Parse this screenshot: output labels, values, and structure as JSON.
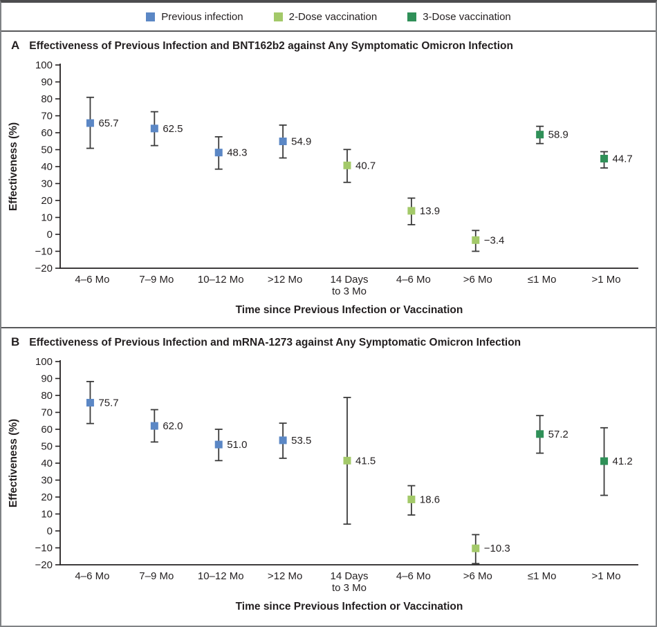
{
  "legend": [
    {
      "label": "Previous infection",
      "color": "#5b87c5"
    },
    {
      "label": "2-Dose vaccination",
      "color": "#a3c969"
    },
    {
      "label": "3-Dose vaccination",
      "color": "#2f9058"
    }
  ],
  "axis_style": {
    "line_color": "#231f20",
    "errorbar_color": "#3b3b3b"
  },
  "chart_data": [
    {
      "type": "scatter",
      "panel_label": "A",
      "title": "Effectiveness of Previous Infection and BNT162b2 against Any Symptomatic Omicron Infection",
      "xlabel": "Time since Previous Infection or Vaccination",
      "ylabel": "Effectiveness (%)",
      "ylim": [
        -20,
        100
      ],
      "y_ticks": [
        100,
        90,
        80,
        70,
        60,
        50,
        40,
        30,
        20,
        10,
        0,
        -10,
        -20
      ],
      "grid": false,
      "legend_position": "top-center",
      "categories": [
        "4–6 Mo",
        "7–9 Mo",
        "10–12 Mo",
        ">12 Mo",
        "14 Days\nto 3 Mo",
        "4–6 Mo",
        ">6 Mo",
        "≤1 Mo",
        ">1 Mo"
      ],
      "points": [
        {
          "category": "4–6 Mo",
          "series": "Previous infection",
          "value": 65.7,
          "label": "65.7",
          "ci_low": 50.8,
          "ci_high": 80.9
        },
        {
          "category": "7–9 Mo",
          "series": "Previous infection",
          "value": 62.5,
          "label": "62.5",
          "ci_low": 52.4,
          "ci_high": 72.4
        },
        {
          "category": "10–12 Mo",
          "series": "Previous infection",
          "value": 48.3,
          "label": "48.3",
          "ci_low": 38.5,
          "ci_high": 57.6
        },
        {
          "category": ">12 Mo",
          "series": "Previous infection",
          "value": 54.9,
          "label": "54.9",
          "ci_low": 45.1,
          "ci_high": 64.5
        },
        {
          "category": "14 Days\nto 3 Mo",
          "series": "2-Dose vaccination",
          "value": 40.7,
          "label": "40.7",
          "ci_low": 30.7,
          "ci_high": 50.1
        },
        {
          "category": "4–6 Mo",
          "series": "2-Dose vaccination",
          "value": 13.9,
          "label": "13.9",
          "ci_low": 5.7,
          "ci_high": 21.4
        },
        {
          "category": ">6 Mo",
          "series": "2-Dose vaccination",
          "value": -3.4,
          "label": "−3.4",
          "ci_low": -10.0,
          "ci_high": 2.3
        },
        {
          "category": "≤1 Mo",
          "series": "3-Dose vaccination",
          "value": 58.9,
          "label": "58.9",
          "ci_low": 53.6,
          "ci_high": 63.8
        },
        {
          "category": ">1 Mo",
          "series": "3-Dose vaccination",
          "value": 44.7,
          "label": "44.7",
          "ci_low": 39.2,
          "ci_high": 48.8
        }
      ]
    },
    {
      "type": "scatter",
      "panel_label": "B",
      "title": "Effectiveness of Previous Infection and mRNA-1273 against Any Symptomatic Omicron Infection",
      "xlabel": "Time since Previous Infection or Vaccination",
      "ylabel": "Effectiveness (%)",
      "ylim": [
        -20,
        100
      ],
      "y_ticks": [
        100,
        90,
        80,
        70,
        60,
        50,
        40,
        30,
        20,
        10,
        0,
        -10,
        -20
      ],
      "grid": false,
      "legend_position": "top-center",
      "categories": [
        "4–6 Mo",
        "7–9 Mo",
        "10–12 Mo",
        ">12 Mo",
        "14 Days\nto 3 Mo",
        "4–6 Mo",
        ">6 Mo",
        "≤1 Mo",
        ">1 Mo"
      ],
      "points": [
        {
          "category": "4–6 Mo",
          "series": "Previous infection",
          "value": 75.7,
          "label": "75.7",
          "ci_low": 63.4,
          "ci_high": 88.2
        },
        {
          "category": "7–9 Mo",
          "series": "Previous infection",
          "value": 62.0,
          "label": "62.0",
          "ci_low": 52.5,
          "ci_high": 71.6
        },
        {
          "category": "10–12 Mo",
          "series": "Previous infection",
          "value": 51.0,
          "label": "51.0",
          "ci_low": 41.5,
          "ci_high": 60.0
        },
        {
          "category": ">12 Mo",
          "series": "Previous infection",
          "value": 53.5,
          "label": "53.5",
          "ci_low": 42.9,
          "ci_high": 63.6
        },
        {
          "category": "14 Days\nto 3 Mo",
          "series": "2-Dose vaccination",
          "value": 41.5,
          "label": "41.5",
          "ci_low": 4.0,
          "ci_high": 78.8
        },
        {
          "category": "4–6 Mo",
          "series": "2-Dose vaccination",
          "value": 18.6,
          "label": "18.6",
          "ci_low": 9.4,
          "ci_high": 26.7
        },
        {
          "category": ">6 Mo",
          "series": "2-Dose vaccination",
          "value": -10.3,
          "label": "−10.3",
          "ci_low": -19.3,
          "ci_high": -2.2
        },
        {
          "category": "≤1 Mo",
          "series": "3-Dose vaccination",
          "value": 57.2,
          "label": "57.2",
          "ci_low": 45.9,
          "ci_high": 68.1
        },
        {
          "category": ">1 Mo",
          "series": "3-Dose vaccination",
          "value": 41.2,
          "label": "41.2",
          "ci_low": 21.0,
          "ci_high": 60.9
        }
      ]
    }
  ]
}
